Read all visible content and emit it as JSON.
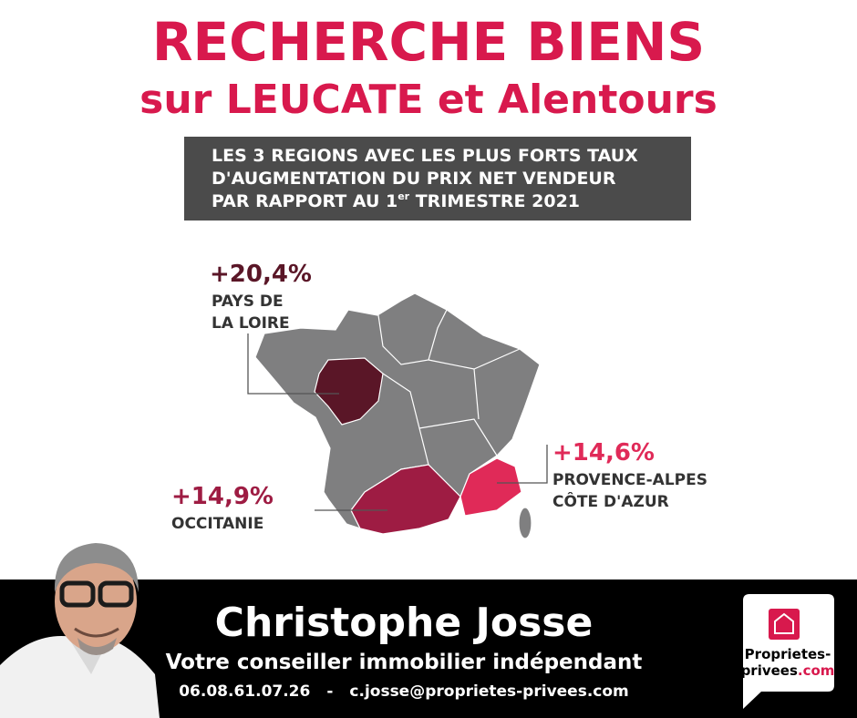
{
  "header": {
    "title_line1": "RECHERCHE BIENS",
    "title_line2": "sur LEUCATE et Alentours"
  },
  "info_box": {
    "line1": "LES 3 REGIONS AVEC LES PLUS FORTS TAUX",
    "line2": "D'AUGMENTATION DU PRIX NET VENDEUR",
    "line3_start": "PAR RAPPORT AU 1",
    "line3_sup": "er",
    "line3_end": " TRIMESTRE 2021"
  },
  "regions": [
    {
      "value": "+20,4%",
      "name_line1": "PAYS DE",
      "name_line2": "LA LOIRE"
    },
    {
      "value": "+14,6%",
      "name_line1": "PROVENCE-ALPES",
      "name_line2": "CÔTE D'AZUR"
    },
    {
      "value": "+14,9%",
      "name_line1": "OCCITANIE"
    }
  ],
  "footer": {
    "name": "Christophe Josse",
    "role": "Votre conseiller immobilier indépendant",
    "phone": "06.08.61.07.26",
    "separator": "-",
    "email": "c.josse@proprietes-privees.com"
  },
  "logo": {
    "line1": "Proprietes-",
    "line2": "privees",
    "suffix": ".com"
  }
}
